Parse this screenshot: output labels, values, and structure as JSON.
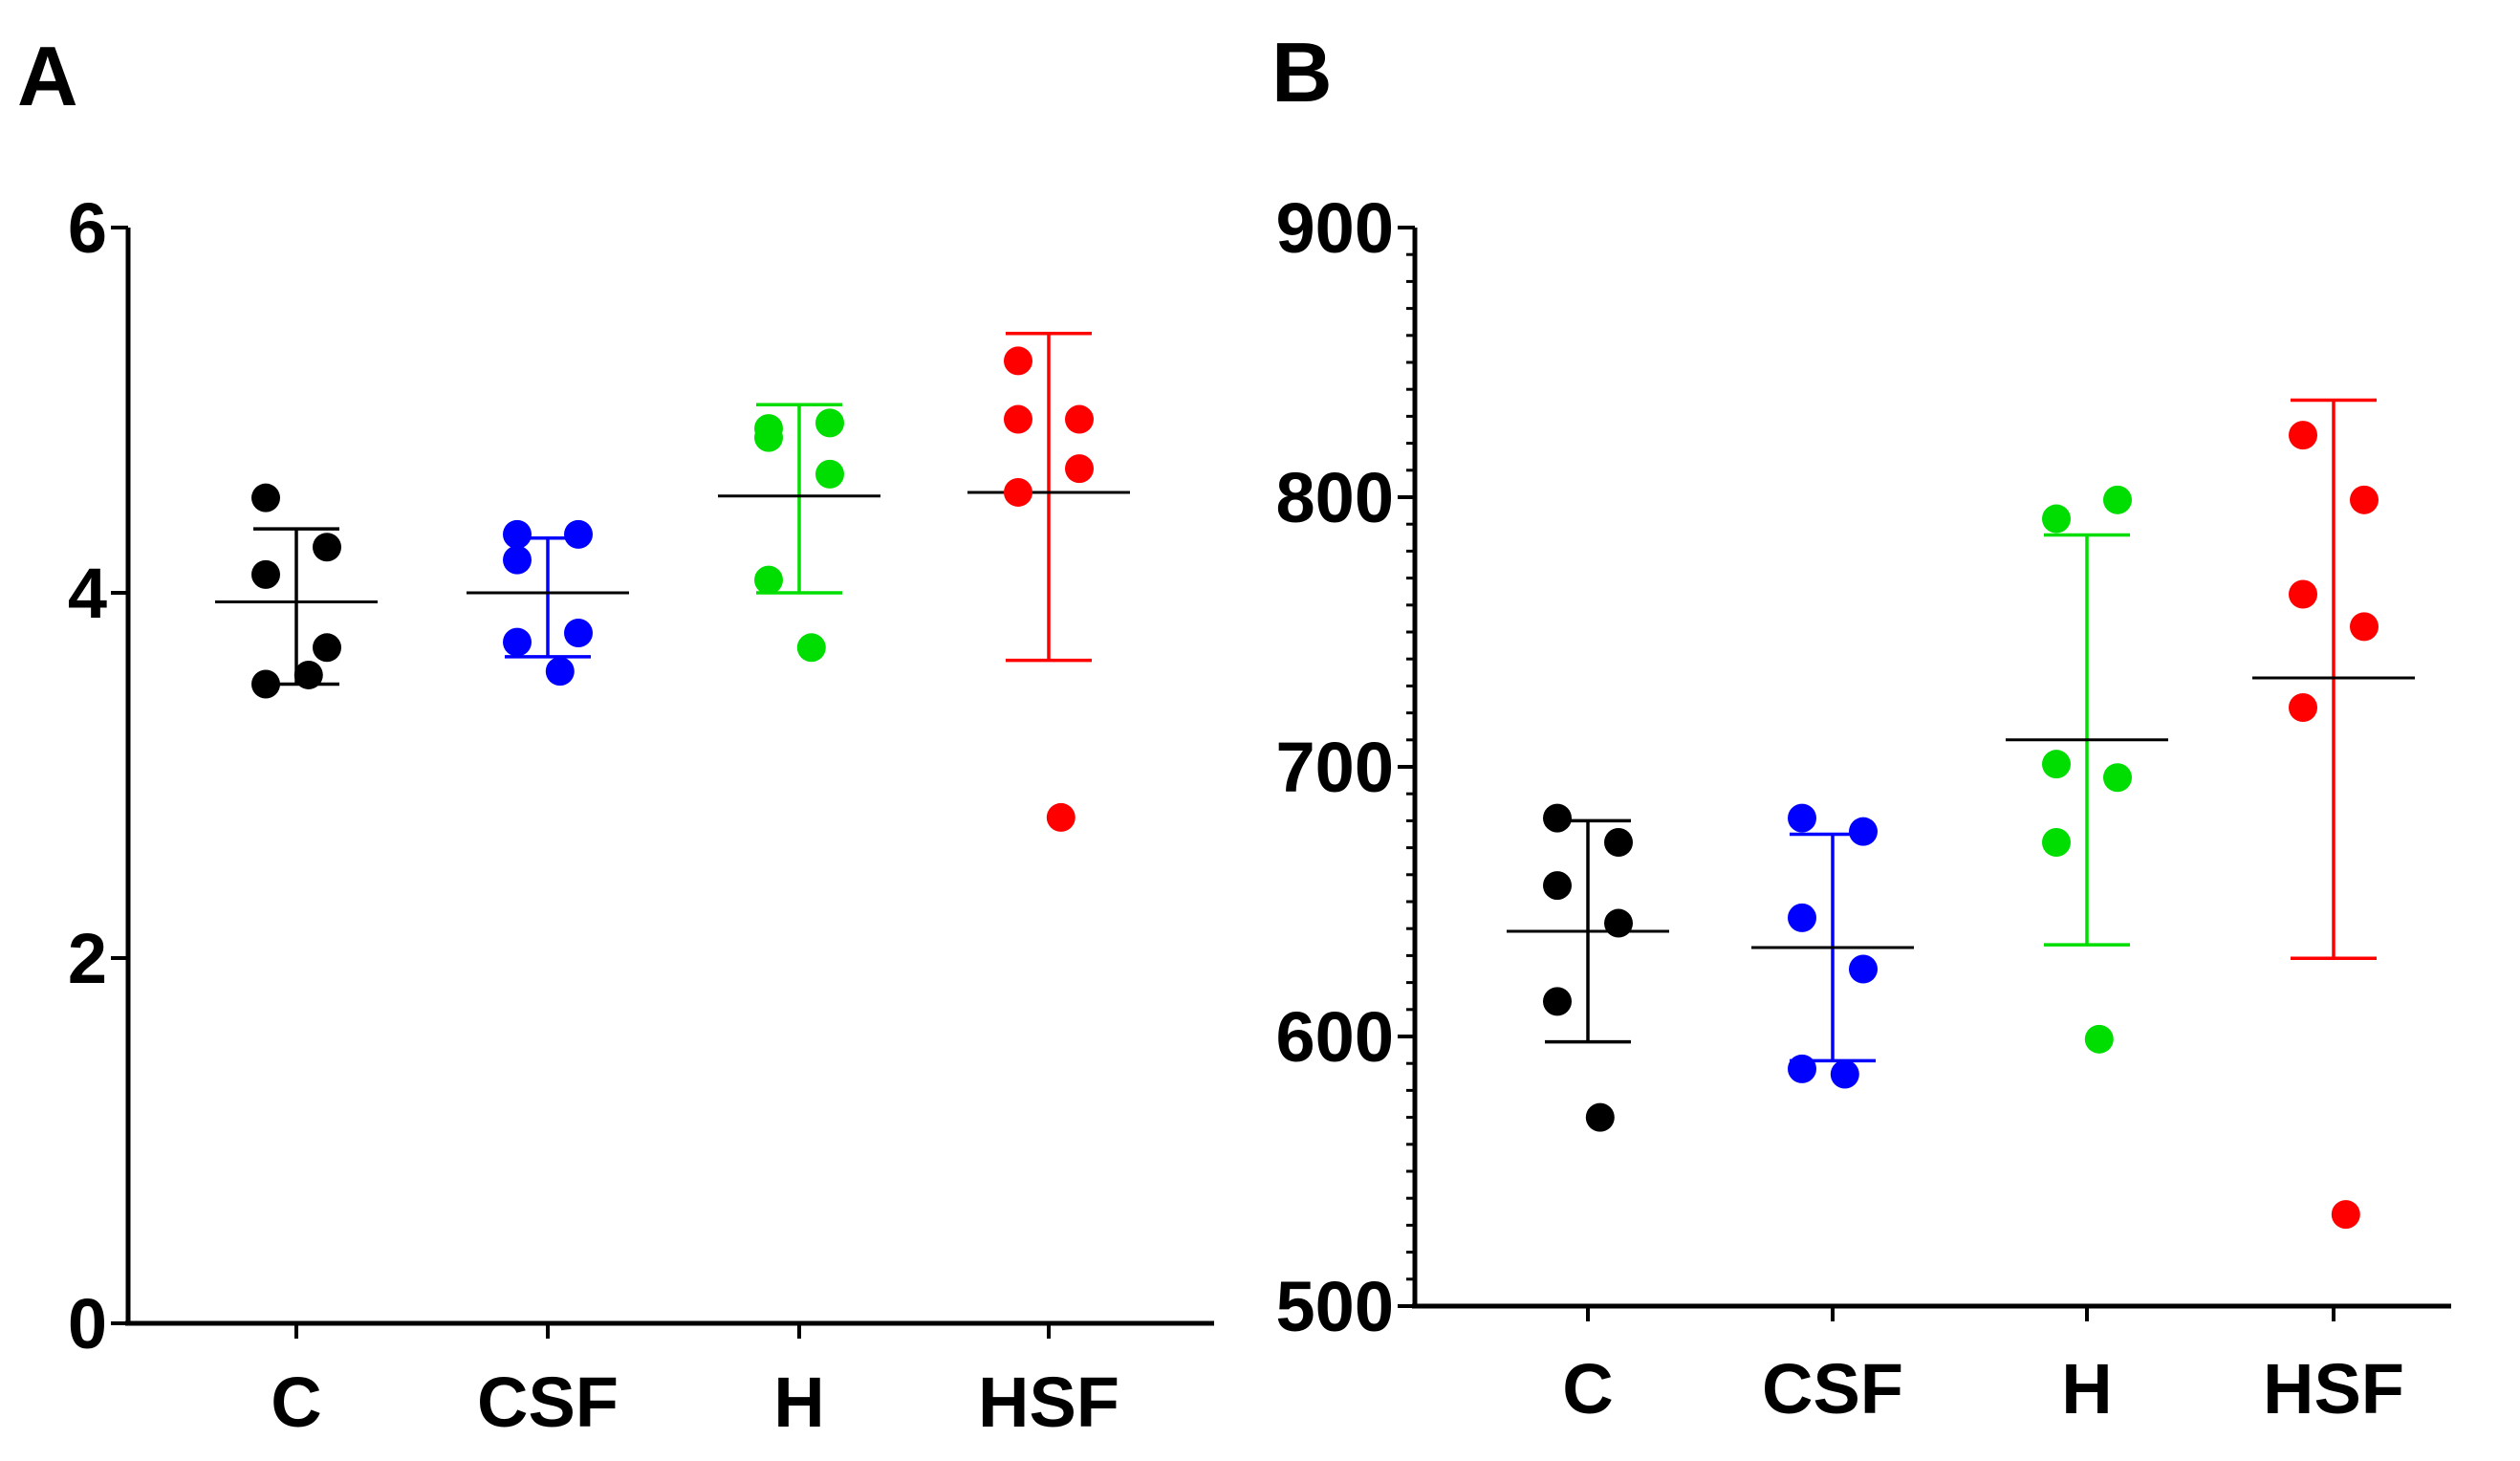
{
  "chart_data": [
    {
      "panel_label": "A",
      "type": "scatter",
      "categories": [
        "C",
        "CSF",
        "H",
        "HSF"
      ],
      "ylim": [
        0,
        6
      ],
      "yticks": [
        "0",
        "2",
        "4",
        "6"
      ],
      "minor_ticks": false,
      "xlabel": "",
      "ylabel": "",
      "series": [
        {
          "name": "C",
          "color": "#000000",
          "mean": 3.95,
          "err_low": 3.5,
          "err_high": 4.35,
          "points": [
            4.52,
            4.25,
            4.1,
            3.7,
            3.5,
            3.55
          ]
        },
        {
          "name": "CSF",
          "color": "#0000ff",
          "mean": 4.0,
          "err_low": 3.65,
          "err_high": 4.3,
          "points": [
            4.18,
            4.32,
            4.32,
            3.78,
            3.73,
            3.57
          ]
        },
        {
          "name": "H",
          "color": "#00dd00",
          "mean": 4.53,
          "err_low": 4.0,
          "err_high": 5.03,
          "points": [
            4.85,
            4.93,
            4.9,
            4.65,
            4.07,
            3.7
          ]
        },
        {
          "name": "HSF",
          "color": "#ff0000",
          "mean": 4.55,
          "err_low": 3.63,
          "err_high": 5.42,
          "points": [
            5.27,
            4.95,
            4.95,
            4.68,
            4.55,
            2.77
          ]
        }
      ]
    },
    {
      "panel_label": "B",
      "type": "scatter",
      "categories": [
        "C",
        "CSF",
        "H",
        "HSF"
      ],
      "ylim": [
        500,
        900
      ],
      "yticks": [
        "500",
        "600",
        "700",
        "800",
        "900"
      ],
      "minor_ticks": true,
      "xlabel": "",
      "ylabel": "",
      "series": [
        {
          "name": "C",
          "color": "#000000",
          "mean": 639,
          "err_low": 598,
          "err_high": 680,
          "points": [
            681,
            672,
            656,
            642,
            613,
            570
          ]
        },
        {
          "name": "CSF",
          "color": "#0000ff",
          "mean": 633,
          "err_low": 591,
          "err_high": 675,
          "points": [
            681,
            676,
            644,
            625,
            588,
            586
          ]
        },
        {
          "name": "H",
          "color": "#00dd00",
          "mean": 710,
          "err_low": 634,
          "err_high": 786,
          "points": [
            792,
            799,
            701,
            696,
            672,
            599
          ]
        },
        {
          "name": "HSF",
          "color": "#ff0000",
          "mean": 733,
          "err_low": 629,
          "err_high": 836,
          "points": [
            823,
            799,
            764,
            752,
            722,
            534
          ]
        }
      ]
    }
  ]
}
